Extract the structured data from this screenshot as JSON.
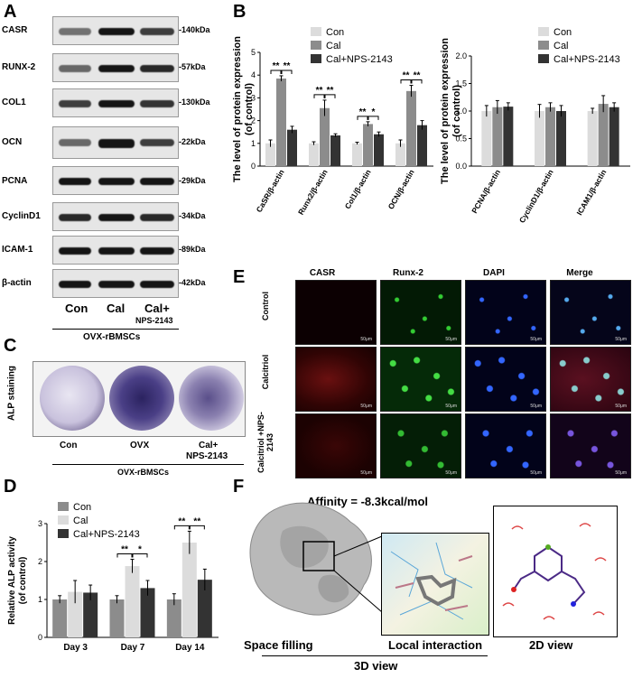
{
  "panels": {
    "A": "A",
    "B": "B",
    "C": "C",
    "D": "D",
    "E": "E",
    "F": "F"
  },
  "panelA": {
    "rows": [
      {
        "label": "CASR",
        "kda": "-140kDa"
      },
      {
        "label": "RUNX-2",
        "kda": "-57kDa"
      },
      {
        "label": "COL1",
        "kda": "-130kDa"
      },
      {
        "label": "OCN",
        "kda": "-22kDa"
      },
      {
        "label": "PCNA",
        "kda": "-29kDa"
      },
      {
        "label": "CyclinD1",
        "kda": "-34kDa"
      },
      {
        "label": "ICAM-1",
        "kda": "-89kDa"
      },
      {
        "label": "β-actin",
        "kda": "-42kDa"
      }
    ],
    "lanes": [
      "Con",
      "Cal",
      "Cal+",
      "NPS-2143"
    ],
    "footer": "OVX-rBMSCs"
  },
  "panelC": {
    "ylabel": "ALP staining",
    "labels": [
      "Con",
      "OVX",
      "Cal+",
      "NPS-2143"
    ],
    "footer": "OVX-rBMSCs"
  },
  "panelE": {
    "columns": [
      "CASR",
      "Runx-2",
      "DAPI",
      "Merge"
    ],
    "rows": [
      "Control",
      "Calcitriol",
      "Calcitriol +NPS-2143"
    ],
    "scale": "50μm"
  },
  "panelF": {
    "affinity": "Affinity = -8.3kcal/mol",
    "labels": [
      "Space filling",
      "Local interaction",
      "2D view"
    ],
    "footer": "3D view"
  },
  "chart_data": [
    {
      "type": "bar",
      "ylabel": "The level of protein expression (of control)",
      "categories": [
        "CaSR/β-actin",
        "Runx2/β-actin",
        "Col1/β-actin",
        "OCN/β-actin"
      ],
      "ylim": [
        0,
        5
      ],
      "yticks": [
        0,
        1,
        2,
        3,
        4,
        5
      ],
      "legend": "top-right",
      "series": [
        {
          "name": "Con",
          "values": [
            1.0,
            1.0,
            1.0,
            1.0
          ],
          "errors": [
            0.15,
            0.07,
            0.05,
            0.15
          ],
          "color": "#dcdcdc"
        },
        {
          "name": "Cal",
          "values": [
            3.85,
            2.55,
            1.85,
            3.3
          ],
          "errors": [
            0.12,
            0.35,
            0.1,
            0.25
          ],
          "color": "#8c8c8c"
        },
        {
          "name": "Cal+NPS-2143",
          "values": [
            1.6,
            1.35,
            1.4,
            1.8
          ],
          "errors": [
            0.15,
            0.07,
            0.1,
            0.2
          ],
          "color": "#333333"
        }
      ],
      "significance": [
        {
          "category": 0,
          "marks": [
            "**",
            "**"
          ]
        },
        {
          "category": 1,
          "marks": [
            "**",
            "**"
          ]
        },
        {
          "category": 2,
          "marks": [
            "**",
            "*"
          ]
        },
        {
          "category": 3,
          "marks": [
            "**",
            "**"
          ]
        }
      ]
    },
    {
      "type": "bar",
      "ylabel": "The level of protein expression (of control)",
      "categories": [
        "PCNA/β-actin",
        "CyclinD1/β-actin",
        "ICAM1/β-actin"
      ],
      "ylim": [
        0,
        2.0
      ],
      "yticks": [
        0.0,
        0.5,
        1.0,
        1.5,
        2.0
      ],
      "legend": "top-right",
      "series": [
        {
          "name": "Con",
          "values": [
            1.0,
            1.0,
            1.0
          ],
          "errors": [
            0.1,
            0.12,
            0.05
          ],
          "color": "#dcdcdc"
        },
        {
          "name": "Cal",
          "values": [
            1.07,
            1.07,
            1.13
          ],
          "errors": [
            0.12,
            0.08,
            0.15
          ],
          "color": "#8c8c8c"
        },
        {
          "name": "Cal+NPS-2143",
          "values": [
            1.08,
            1.0,
            1.07
          ],
          "errors": [
            0.07,
            0.1,
            0.08
          ],
          "color": "#333333"
        }
      ]
    },
    {
      "type": "bar",
      "ylabel": "Relative ALP activity (of control)",
      "categories": [
        "Day 3",
        "Day 7",
        "Day 14"
      ],
      "ylim": [
        0,
        3
      ],
      "yticks": [
        0,
        1,
        2,
        3
      ],
      "legend": "top-left",
      "series": [
        {
          "name": "Con",
          "values": [
            1.0,
            1.0,
            1.0
          ],
          "errors": [
            0.1,
            0.1,
            0.15
          ],
          "color": "#8c8c8c"
        },
        {
          "name": "Cal",
          "values": [
            1.2,
            1.88,
            2.5
          ],
          "errors": [
            0.3,
            0.18,
            0.3
          ],
          "color": "#dcdcdc"
        },
        {
          "name": "Cal+NPS-2143",
          "values": [
            1.18,
            1.3,
            1.52
          ],
          "errors": [
            0.2,
            0.2,
            0.28
          ],
          "color": "#333333"
        }
      ],
      "significance": [
        {
          "category": 1,
          "marks": [
            "**",
            "*"
          ]
        },
        {
          "category": 2,
          "marks": [
            "**",
            "**"
          ]
        }
      ]
    }
  ]
}
